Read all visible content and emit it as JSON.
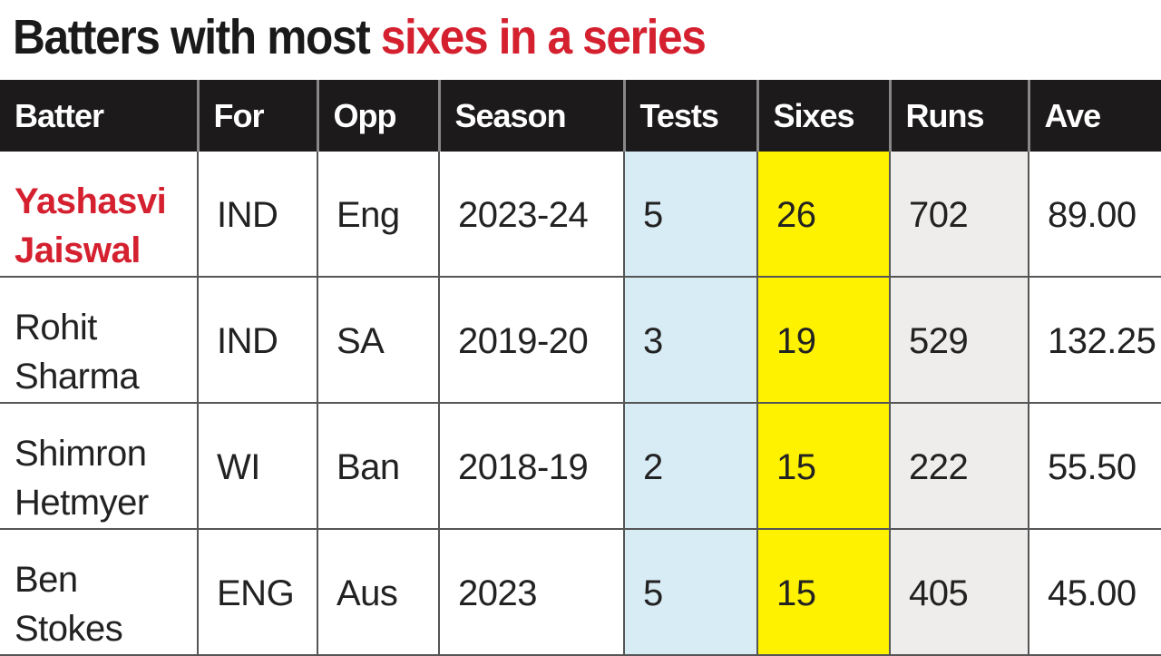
{
  "title": {
    "part1": "Batters with most ",
    "part2": "sixes in a series"
  },
  "colors": {
    "highlight": "#d4202f",
    "tests_bg": "#d8ecf5",
    "sixes_bg": "#fff200",
    "runs_bg": "#eeedeb",
    "header_bg": "#1c1a1b"
  },
  "chart_data": {
    "type": "table",
    "title": "Batters with most sixes in a series",
    "columns": [
      "Batter",
      "For",
      "Opp",
      "Season",
      "Tests",
      "Sixes",
      "Runs",
      "Ave"
    ],
    "rows": [
      [
        "Yashasvi Jaiswal",
        "IND",
        "Eng",
        "2023-24",
        "5",
        "26",
        "702",
        "89.00"
      ],
      [
        "Rohit Sharma",
        "IND",
        "SA",
        "2019-20",
        "3",
        "19",
        "529",
        "132.25"
      ],
      [
        "Shimron Hetmyer",
        "WI",
        "Ban",
        "2018-19",
        "2",
        "15",
        "222",
        "55.50"
      ],
      [
        "Ben Stokes",
        "ENG",
        "Aus",
        "2023",
        "5",
        "15",
        "405",
        "45.00"
      ]
    ]
  }
}
